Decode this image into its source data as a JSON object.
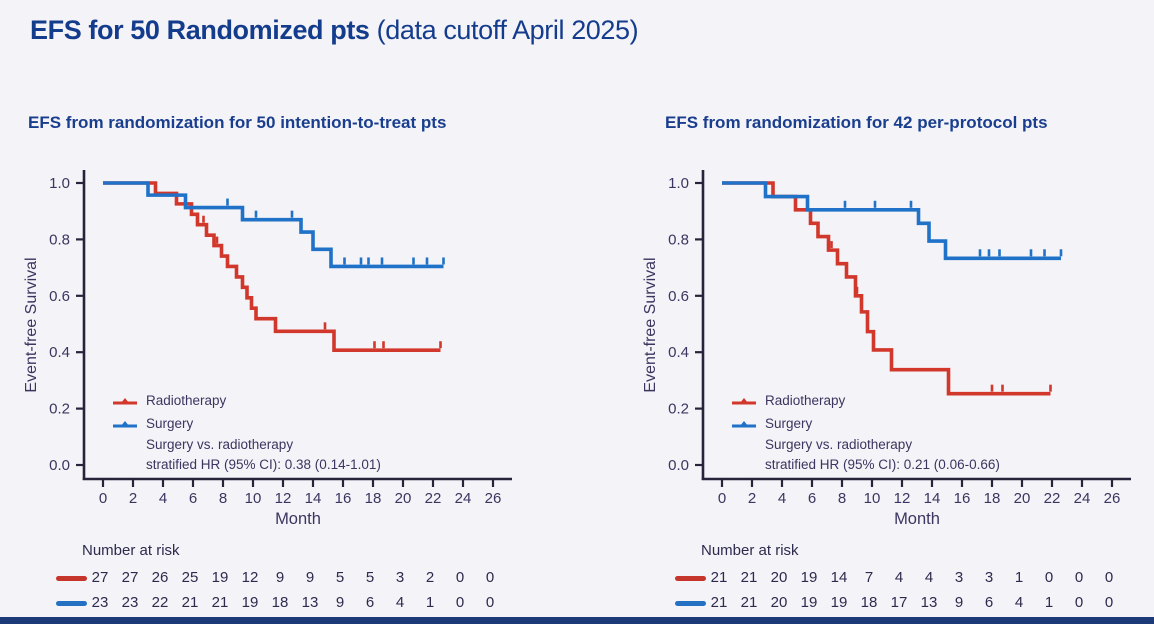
{
  "header": {
    "title_bold": "EFS for 50 Randomized pts",
    "title_normal": "(data cutoff April 2025)"
  },
  "chart_data": [
    {
      "type": "line",
      "subtype": "kaplan-meier-step",
      "title": "EFS from randomization for 50 intention-to-treat pts",
      "xlabel": "Month",
      "ylabel": "Event-free Survival",
      "xlim": [
        0,
        26
      ],
      "ylim": [
        0.0,
        1.0
      ],
      "grid": false,
      "legend_position": "lower-left-inside",
      "xticks": [
        0,
        2,
        4,
        6,
        8,
        10,
        12,
        14,
        16,
        18,
        20,
        22,
        24,
        26
      ],
      "yticks": [
        {
          "v": 1.0,
          "label": "1.0"
        },
        {
          "v": 0.8,
          "label": "0.8"
        },
        {
          "v": 0.6,
          "label": "0.6"
        },
        {
          "v": 0.4,
          "label": "0.4"
        },
        {
          "v": 0.2,
          "label": "0.2"
        },
        {
          "v": 0.0,
          "label": "0.0"
        }
      ],
      "series": [
        {
          "name": "Radiotherapy",
          "color": "#d2372c",
          "steps": [
            [
              0,
              1.0
            ],
            [
              3.5,
              0.963
            ],
            [
              4.9,
              0.926
            ],
            [
              5.9,
              0.889
            ],
            [
              6.3,
              0.852
            ],
            [
              6.9,
              0.815
            ],
            [
              7.4,
              0.778
            ],
            [
              7.9,
              0.741
            ],
            [
              8.3,
              0.704
            ],
            [
              8.9,
              0.667
            ],
            [
              9.3,
              0.63
            ],
            [
              9.6,
              0.593
            ],
            [
              9.9,
              0.556
            ],
            [
              10.2,
              0.519
            ],
            [
              11.5,
              0.474
            ],
            [
              15.4,
              0.407
            ]
          ],
          "censors": [
            [
              6.7,
              0.852
            ],
            [
              7.6,
              0.778
            ],
            [
              14.8,
              0.474
            ],
            [
              18.1,
              0.407
            ],
            [
              18.7,
              0.407
            ],
            [
              22.5,
              0.407
            ]
          ],
          "end": 22.5
        },
        {
          "name": "Surgery",
          "color": "#1f72c7",
          "steps": [
            [
              0,
              1.0
            ],
            [
              3.0,
              0.957
            ],
            [
              5.5,
              0.913
            ],
            [
              9.3,
              0.87
            ],
            [
              13.2,
              0.826
            ],
            [
              14.0,
              0.765
            ],
            [
              15.2,
              0.704
            ]
          ],
          "censors": [
            [
              8.3,
              0.913
            ],
            [
              10.2,
              0.87
            ],
            [
              12.6,
              0.87
            ],
            [
              16.1,
              0.704
            ],
            [
              17.2,
              0.704
            ],
            [
              17.7,
              0.704
            ],
            [
              18.6,
              0.704
            ],
            [
              20.7,
              0.704
            ],
            [
              21.6,
              0.704
            ],
            [
              22.7,
              0.704
            ]
          ],
          "end": 22.7
        }
      ],
      "note_line1": "Surgery vs. radiotherapy",
      "note_line2": "stratified HR (95% CI): 0.38 (0.14-1.01)",
      "at_risk": {
        "label": "Number at risk",
        "rows": [
          {
            "name": "Radiotherapy",
            "color": "#c5352b",
            "values": [
              27,
              27,
              26,
              25,
              19,
              12,
              9,
              9,
              5,
              5,
              3,
              2,
              0,
              0
            ]
          },
          {
            "name": "Surgery",
            "color": "#2471c4",
            "values": [
              23,
              23,
              22,
              21,
              21,
              19,
              18,
              13,
              9,
              6,
              4,
              1,
              0,
              0
            ]
          }
        ]
      }
    },
    {
      "type": "line",
      "subtype": "kaplan-meier-step",
      "title": "EFS from randomization for 42 per-protocol pts",
      "xlabel": "Month",
      "ylabel": "Event-free Survival",
      "xlim": [
        0,
        26
      ],
      "ylim": [
        0.0,
        1.0
      ],
      "grid": false,
      "legend_position": "lower-left-inside",
      "xticks": [
        0,
        2,
        4,
        6,
        8,
        10,
        12,
        14,
        16,
        18,
        20,
        22,
        24,
        26
      ],
      "yticks": [
        {
          "v": 1.0,
          "label": "1.0"
        },
        {
          "v": 0.8,
          "label": "0.8"
        },
        {
          "v": 0.6,
          "label": "0.6"
        },
        {
          "v": 0.4,
          "label": "0.4"
        },
        {
          "v": 0.2,
          "label": "0.2"
        },
        {
          "v": 0.0,
          "label": "0.0"
        }
      ],
      "series": [
        {
          "name": "Radiotherapy",
          "color": "#d2372c",
          "steps": [
            [
              0,
              1.0
            ],
            [
              3.4,
              0.952
            ],
            [
              4.9,
              0.905
            ],
            [
              5.9,
              0.857
            ],
            [
              6.4,
              0.81
            ],
            [
              7.1,
              0.762
            ],
            [
              7.7,
              0.714
            ],
            [
              8.3,
              0.667
            ],
            [
              8.9,
              0.6
            ],
            [
              9.3,
              0.543
            ],
            [
              9.7,
              0.473
            ],
            [
              10.1,
              0.408
            ],
            [
              11.3,
              0.338
            ],
            [
              15.1,
              0.253
            ]
          ],
          "censors": [
            [
              7.3,
              0.762
            ],
            [
              9.0,
              0.6
            ],
            [
              18.0,
              0.253
            ],
            [
              18.7,
              0.253
            ],
            [
              21.9,
              0.253
            ]
          ],
          "end": 21.9
        },
        {
          "name": "Surgery",
          "color": "#1f72c7",
          "steps": [
            [
              0,
              1.0
            ],
            [
              2.9,
              0.952
            ],
            [
              5.7,
              0.905
            ],
            [
              13.1,
              0.857
            ],
            [
              13.8,
              0.794
            ],
            [
              14.9,
              0.733
            ]
          ],
          "censors": [
            [
              8.2,
              0.905
            ],
            [
              10.2,
              0.905
            ],
            [
              12.6,
              0.905
            ],
            [
              17.2,
              0.733
            ],
            [
              17.8,
              0.733
            ],
            [
              18.5,
              0.733
            ],
            [
              20.6,
              0.733
            ],
            [
              21.5,
              0.733
            ],
            [
              22.6,
              0.733
            ]
          ],
          "end": 22.6
        }
      ],
      "note_line1": "Surgery vs. radiotherapy",
      "note_line2": "stratified HR (95% CI): 0.21 (0.06-0.66)",
      "at_risk": {
        "label": "Number at risk",
        "rows": [
          {
            "name": "Radiotherapy",
            "color": "#c5352b",
            "values": [
              21,
              21,
              20,
              19,
              14,
              7,
              4,
              4,
              3,
              3,
              1,
              0,
              0,
              0
            ]
          },
          {
            "name": "Surgery",
            "color": "#2471c4",
            "values": [
              21,
              21,
              20,
              19,
              19,
              18,
              17,
              13,
              9,
              6,
              4,
              1,
              0,
              0
            ]
          }
        ]
      }
    }
  ]
}
